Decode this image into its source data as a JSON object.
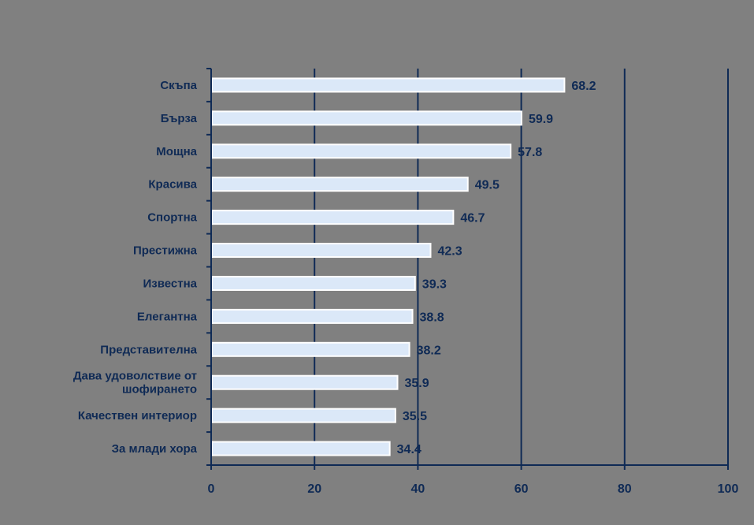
{
  "chart_data": {
    "type": "bar",
    "orientation": "horizontal",
    "categories": [
      "Скъпа",
      "Бърза",
      "Мощна",
      "Красива",
      "Спортна",
      "Престижна",
      "Известна",
      "Елегантна",
      "Представителна",
      [
        "Дава удоволствие от",
        "шофирането"
      ],
      "Качествен интериор",
      "За млади хора"
    ],
    "values": [
      68.2,
      59.9,
      57.8,
      49.5,
      46.7,
      42.3,
      39.3,
      38.8,
      38.2,
      35.9,
      35.5,
      34.4
    ],
    "data_labels": [
      "68.2",
      "59.9",
      "57.8",
      "49.5",
      "46.7",
      "42.3",
      "39.3",
      "38.8",
      "38.2",
      "35.9",
      "35.5",
      "34.4"
    ],
    "x_ticks": [
      0,
      20,
      40,
      60,
      80,
      100
    ],
    "x_tick_labels": [
      "0",
      "20",
      "40",
      "60",
      "80",
      "100"
    ],
    "xlim": [
      0,
      100
    ],
    "grid": "vertical",
    "legend": "none",
    "colors": {
      "background": "#808080",
      "bar_fill": "#dbe8f8",
      "bar_stroke": "#ffffff",
      "axis": "#0f2a55",
      "grid": "#0f2a55",
      "text": "#0f2a55"
    }
  }
}
